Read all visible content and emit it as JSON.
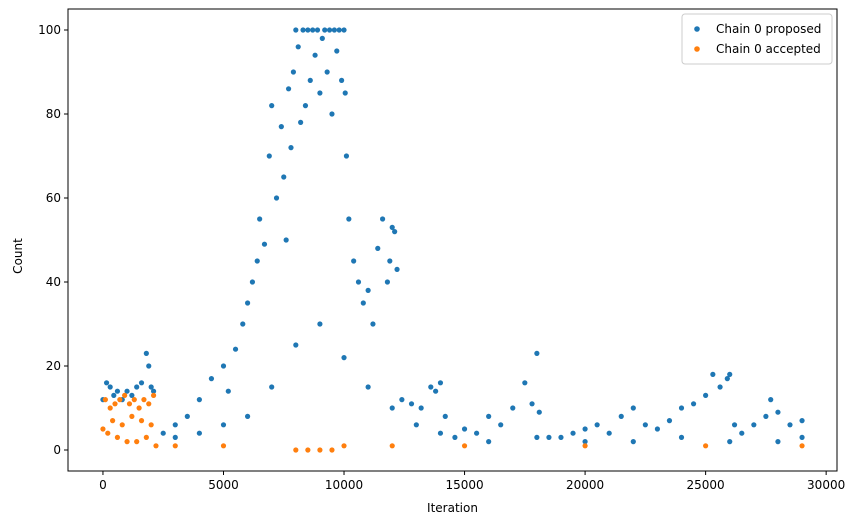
{
  "chart_data": {
    "type": "scatter",
    "xlabel": "Iteration",
    "ylabel": "Count",
    "xlim": [
      -1450,
      30450
    ],
    "ylim": [
      -5,
      105
    ],
    "xticks": [
      0,
      5000,
      10000,
      15000,
      20000,
      25000,
      30000
    ],
    "yticks": [
      0,
      20,
      40,
      60,
      80,
      100
    ],
    "legend_position": "top-right",
    "grid": false,
    "series": [
      {
        "name": "Chain 0 proposed",
        "color": "#1f77b4",
        "points": [
          [
            0,
            12
          ],
          [
            150,
            16
          ],
          [
            300,
            15
          ],
          [
            450,
            13
          ],
          [
            600,
            14
          ],
          [
            800,
            12
          ],
          [
            1000,
            14
          ],
          [
            1200,
            13
          ],
          [
            1400,
            15
          ],
          [
            1600,
            16
          ],
          [
            1800,
            23
          ],
          [
            1900,
            20
          ],
          [
            2000,
            15
          ],
          [
            2100,
            14
          ],
          [
            2500,
            4
          ],
          [
            3000,
            6
          ],
          [
            3500,
            8
          ],
          [
            4000,
            12
          ],
          [
            4500,
            17
          ],
          [
            5000,
            20
          ],
          [
            5200,
            14
          ],
          [
            5500,
            24
          ],
          [
            5800,
            30
          ],
          [
            6000,
            35
          ],
          [
            6200,
            40
          ],
          [
            6400,
            45
          ],
          [
            6500,
            55
          ],
          [
            6700,
            49
          ],
          [
            6900,
            70
          ],
          [
            7000,
            82
          ],
          [
            7200,
            60
          ],
          [
            7400,
            77
          ],
          [
            7500,
            65
          ],
          [
            7600,
            50
          ],
          [
            7700,
            86
          ],
          [
            7800,
            72
          ],
          [
            7900,
            90
          ],
          [
            8000,
            100
          ],
          [
            8100,
            96
          ],
          [
            8200,
            78
          ],
          [
            8300,
            100
          ],
          [
            8400,
            82
          ],
          [
            8500,
            100
          ],
          [
            8600,
            88
          ],
          [
            8700,
            100
          ],
          [
            8800,
            94
          ],
          [
            8900,
            100
          ],
          [
            9000,
            85
          ],
          [
            9100,
            98
          ],
          [
            9200,
            100
          ],
          [
            9300,
            90
          ],
          [
            9400,
            100
          ],
          [
            9500,
            80
          ],
          [
            9600,
            100
          ],
          [
            9700,
            95
          ],
          [
            9800,
            100
          ],
          [
            9900,
            88
          ],
          [
            10000,
            100
          ],
          [
            10050,
            85
          ],
          [
            10100,
            70
          ],
          [
            10200,
            55
          ],
          [
            10400,
            45
          ],
          [
            10600,
            40
          ],
          [
            10800,
            35
          ],
          [
            11000,
            38
          ],
          [
            11200,
            30
          ],
          [
            11400,
            48
          ],
          [
            11600,
            55
          ],
          [
            11800,
            40
          ],
          [
            11900,
            45
          ],
          [
            12000,
            53
          ],
          [
            12100,
            52
          ],
          [
            12200,
            43
          ],
          [
            12400,
            12
          ],
          [
            12800,
            11
          ],
          [
            13200,
            10
          ],
          [
            13600,
            15
          ],
          [
            13800,
            14
          ],
          [
            14000,
            16
          ],
          [
            14200,
            8
          ],
          [
            14600,
            3
          ],
          [
            15000,
            5
          ],
          [
            15500,
            4
          ],
          [
            16000,
            8
          ],
          [
            16500,
            6
          ],
          [
            17000,
            10
          ],
          [
            17500,
            16
          ],
          [
            17800,
            11
          ],
          [
            18000,
            23
          ],
          [
            18100,
            9
          ],
          [
            18500,
            3
          ],
          [
            19000,
            3
          ],
          [
            19500,
            4
          ],
          [
            20000,
            5
          ],
          [
            20500,
            6
          ],
          [
            21000,
            4
          ],
          [
            21500,
            8
          ],
          [
            22000,
            10
          ],
          [
            22500,
            6
          ],
          [
            23000,
            5
          ],
          [
            23500,
            7
          ],
          [
            24000,
            10
          ],
          [
            24500,
            11
          ],
          [
            25000,
            13
          ],
          [
            25300,
            18
          ],
          [
            25600,
            15
          ],
          [
            25900,
            17
          ],
          [
            26000,
            18
          ],
          [
            26200,
            6
          ],
          [
            26500,
            4
          ],
          [
            27000,
            6
          ],
          [
            27500,
            8
          ],
          [
            27700,
            12
          ],
          [
            28000,
            9
          ],
          [
            28500,
            6
          ],
          [
            29000,
            7
          ],
          [
            3000,
            3
          ],
          [
            4000,
            4
          ],
          [
            5000,
            6
          ],
          [
            6000,
            8
          ],
          [
            7000,
            15
          ],
          [
            8000,
            25
          ],
          [
            9000,
            30
          ],
          [
            10000,
            22
          ],
          [
            11000,
            15
          ],
          [
            12000,
            10
          ],
          [
            13000,
            6
          ],
          [
            14000,
            4
          ],
          [
            16000,
            2
          ],
          [
            18000,
            3
          ],
          [
            20000,
            2
          ],
          [
            22000,
            2
          ],
          [
            24000,
            3
          ],
          [
            26000,
            2
          ],
          [
            28000,
            2
          ],
          [
            29000,
            3
          ]
        ]
      },
      {
        "name": "Chain 0 accepted",
        "color": "#ff7f0e",
        "points": [
          [
            0,
            5
          ],
          [
            100,
            12
          ],
          [
            200,
            4
          ],
          [
            300,
            10
          ],
          [
            400,
            7
          ],
          [
            500,
            11
          ],
          [
            600,
            3
          ],
          [
            700,
            12
          ],
          [
            800,
            6
          ],
          [
            900,
            13
          ],
          [
            1000,
            2
          ],
          [
            1100,
            11
          ],
          [
            1200,
            8
          ],
          [
            1300,
            12
          ],
          [
            1400,
            2
          ],
          [
            1500,
            10
          ],
          [
            1600,
            7
          ],
          [
            1700,
            12
          ],
          [
            1800,
            3
          ],
          [
            1900,
            11
          ],
          [
            2000,
            6
          ],
          [
            2100,
            13
          ],
          [
            2200,
            1
          ],
          [
            3000,
            1
          ],
          [
            5000,
            1
          ],
          [
            8000,
            0
          ],
          [
            8500,
            0
          ],
          [
            9000,
            0
          ],
          [
            9500,
            0
          ],
          [
            10000,
            1
          ],
          [
            12000,
            1
          ],
          [
            15000,
            1
          ],
          [
            20000,
            1
          ],
          [
            25000,
            1
          ],
          [
            29000,
            1
          ]
        ]
      }
    ]
  }
}
